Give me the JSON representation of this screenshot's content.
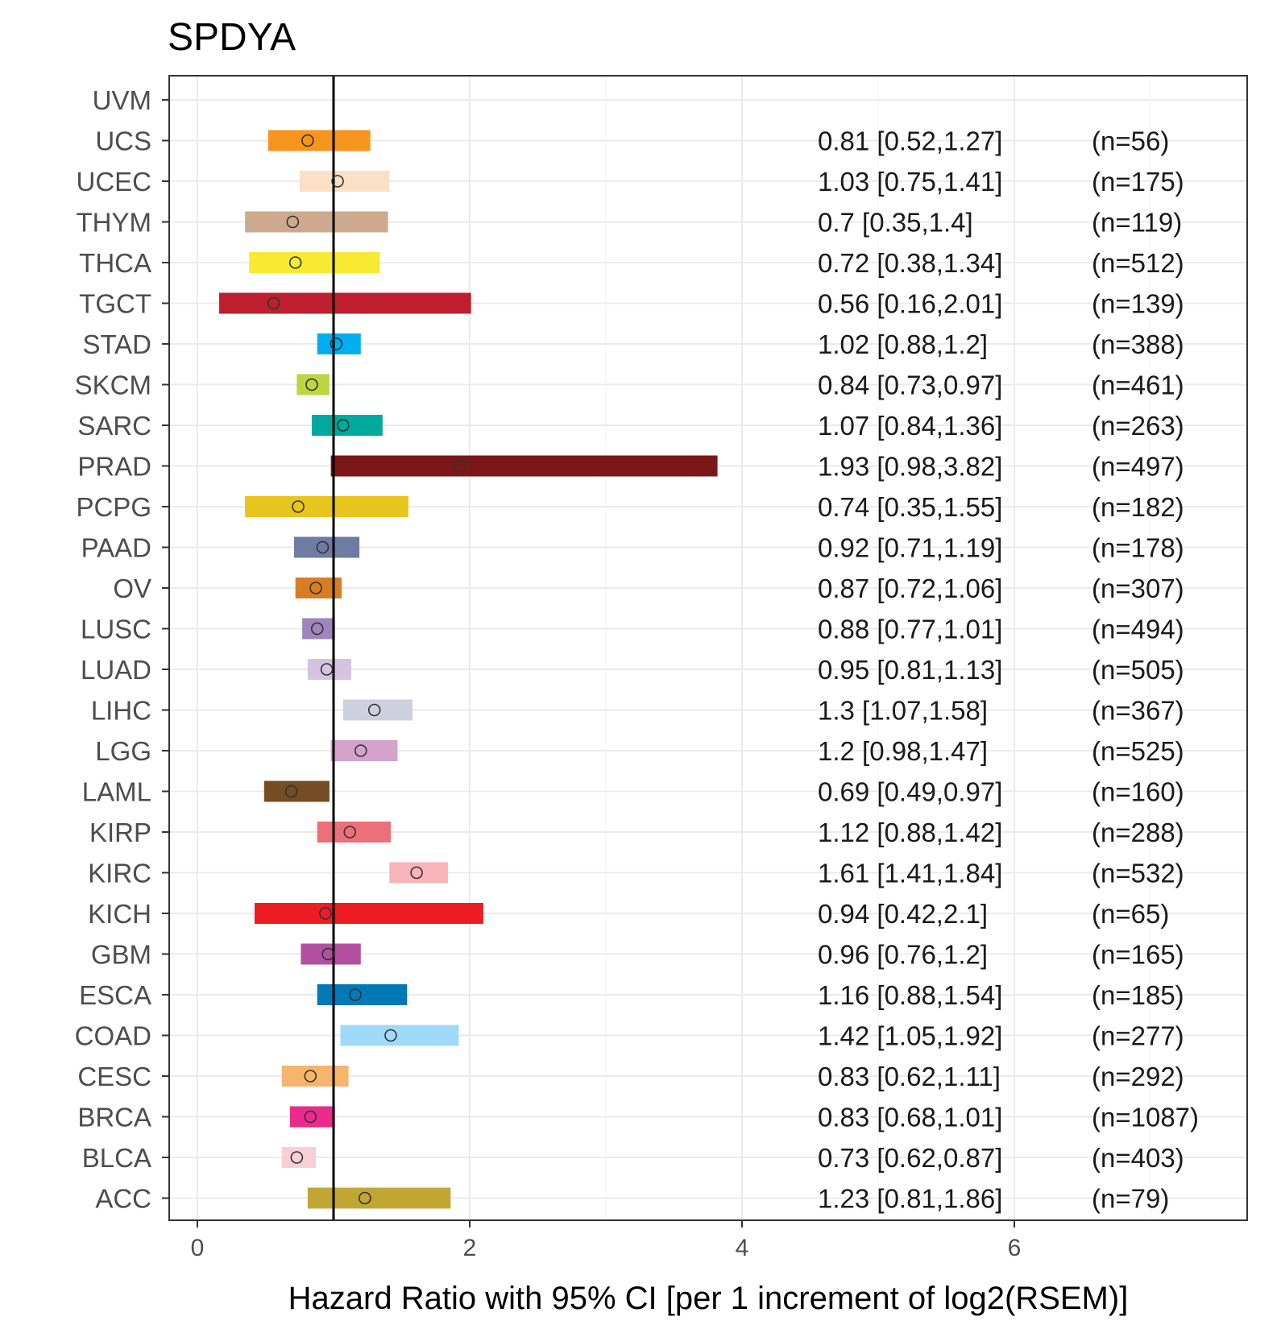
{
  "chart_data": {
    "type": "forest",
    "title": "SPDYA",
    "xlabel": "Hazard Ratio with 95% CI [per 1 increment of log2(RSEM)]",
    "ylabel": "",
    "xlim": [
      -0.2,
      7.6
    ],
    "x_ticks": [
      0,
      2,
      4,
      6
    ],
    "reference_line": 1,
    "grid": true,
    "rows": [
      {
        "label": "UVM",
        "hr": null,
        "lower": null,
        "upper": null,
        "ci_text": "",
        "n_text": "",
        "color": "#ffffff"
      },
      {
        "label": "UCS",
        "hr": 0.81,
        "lower": 0.52,
        "upper": 1.27,
        "ci_text": "0.81 [0.52,1.27]",
        "n_text": "(n=56)",
        "color": "#F7941D"
      },
      {
        "label": "UCEC",
        "hr": 1.03,
        "lower": 0.75,
        "upper": 1.41,
        "ci_text": "1.03 [0.75,1.41]",
        "n_text": "(n=175)",
        "color": "#FCE0C6"
      },
      {
        "label": "THYM",
        "hr": 0.7,
        "lower": 0.35,
        "upper": 1.4,
        "ci_text": "0.7 [0.35,1.4]",
        "n_text": "(n=119)",
        "color": "#CDAA8E"
      },
      {
        "label": "THCA",
        "hr": 0.72,
        "lower": 0.38,
        "upper": 1.34,
        "ci_text": "0.72 [0.38,1.34]",
        "n_text": "(n=512)",
        "color": "#F8EA33"
      },
      {
        "label": "TGCT",
        "hr": 0.56,
        "lower": 0.16,
        "upper": 2.01,
        "ci_text": "0.56 [0.16,2.01]",
        "n_text": "(n=139)",
        "color": "#BE1E2D"
      },
      {
        "label": "STAD",
        "hr": 1.02,
        "lower": 0.88,
        "upper": 1.2,
        "ci_text": "1.02 [0.88,1.2]",
        "n_text": "(n=388)",
        "color": "#00AEEF"
      },
      {
        "label": "SKCM",
        "hr": 0.84,
        "lower": 0.73,
        "upper": 0.97,
        "ci_text": "0.84 [0.73,0.97]",
        "n_text": "(n=461)",
        "color": "#BBD642"
      },
      {
        "label": "SARC",
        "hr": 1.07,
        "lower": 0.84,
        "upper": 1.36,
        "ci_text": "1.07 [0.84,1.36]",
        "n_text": "(n=263)",
        "color": "#00A99D"
      },
      {
        "label": "PRAD",
        "hr": 1.93,
        "lower": 0.98,
        "upper": 3.82,
        "ci_text": "1.93 [0.98,3.82]",
        "n_text": "(n=497)",
        "color": "#7A1818"
      },
      {
        "label": "PCPG",
        "hr": 0.74,
        "lower": 0.35,
        "upper": 1.55,
        "ci_text": "0.74 [0.35,1.55]",
        "n_text": "(n=182)",
        "color": "#E8C51D"
      },
      {
        "label": "PAAD",
        "hr": 0.92,
        "lower": 0.71,
        "upper": 1.19,
        "ci_text": "0.92 [0.71,1.19]",
        "n_text": "(n=178)",
        "color": "#6E7BA2"
      },
      {
        "label": "OV",
        "hr": 0.87,
        "lower": 0.72,
        "upper": 1.06,
        "ci_text": "0.87 [0.72,1.06]",
        "n_text": "(n=307)",
        "color": "#D97D24"
      },
      {
        "label": "LUSC",
        "hr": 0.88,
        "lower": 0.77,
        "upper": 1.01,
        "ci_text": "0.88 [0.77,1.01]",
        "n_text": "(n=494)",
        "color": "#A084BD"
      },
      {
        "label": "LUAD",
        "hr": 0.95,
        "lower": 0.81,
        "upper": 1.13,
        "ci_text": "0.95 [0.81,1.13]",
        "n_text": "(n=505)",
        "color": "#D6C3E1"
      },
      {
        "label": "LIHC",
        "hr": 1.3,
        "lower": 1.07,
        "upper": 1.58,
        "ci_text": "1.3 [1.07,1.58]",
        "n_text": "(n=367)",
        "color": "#CED0DD"
      },
      {
        "label": "LGG",
        "hr": 1.2,
        "lower": 0.98,
        "upper": 1.47,
        "ci_text": "1.2 [0.98,1.47]",
        "n_text": "(n=525)",
        "color": "#D5A2CB"
      },
      {
        "label": "LAML",
        "hr": 0.69,
        "lower": 0.49,
        "upper": 0.97,
        "ci_text": "0.69 [0.49,0.97]",
        "n_text": "(n=160)",
        "color": "#754C24"
      },
      {
        "label": "KIRP",
        "hr": 1.12,
        "lower": 0.88,
        "upper": 1.42,
        "ci_text": "1.12 [0.88,1.42]",
        "n_text": "(n=288)",
        "color": "#ED6F79"
      },
      {
        "label": "KIRC",
        "hr": 1.61,
        "lower": 1.41,
        "upper": 1.84,
        "ci_text": "1.61 [1.41,1.84]",
        "n_text": "(n=532)",
        "color": "#F8B4B8"
      },
      {
        "label": "KICH",
        "hr": 0.94,
        "lower": 0.42,
        "upper": 2.1,
        "ci_text": "0.94 [0.42,2.1]",
        "n_text": "(n=65)",
        "color": "#ED1C24"
      },
      {
        "label": "GBM",
        "hr": 0.96,
        "lower": 0.76,
        "upper": 1.2,
        "ci_text": "0.96 [0.76,1.2]",
        "n_text": "(n=165)",
        "color": "#B2509E"
      },
      {
        "label": "ESCA",
        "hr": 1.16,
        "lower": 0.88,
        "upper": 1.54,
        "ci_text": "1.16 [0.88,1.54]",
        "n_text": "(n=185)",
        "color": "#0079B6"
      },
      {
        "label": "COAD",
        "hr": 1.42,
        "lower": 1.05,
        "upper": 1.92,
        "ci_text": "1.42 [1.05,1.92]",
        "n_text": "(n=277)",
        "color": "#9FDBF9"
      },
      {
        "label": "CESC",
        "hr": 0.83,
        "lower": 0.62,
        "upper": 1.11,
        "ci_text": "0.83 [0.62,1.11]",
        "n_text": "(n=292)",
        "color": "#F6B56A"
      },
      {
        "label": "BRCA",
        "hr": 0.83,
        "lower": 0.68,
        "upper": 1.01,
        "ci_text": "0.83 [0.68,1.01]",
        "n_text": "(n=1087)",
        "color": "#EC2A8C"
      },
      {
        "label": "BLCA",
        "hr": 0.73,
        "lower": 0.62,
        "upper": 0.87,
        "ci_text": "0.73 [0.62,0.87]",
        "n_text": "(n=403)",
        "color": "#F9CED6"
      },
      {
        "label": "ACC",
        "hr": 1.23,
        "lower": 0.81,
        "upper": 1.86,
        "ci_text": "1.23 [0.81,1.86]",
        "n_text": "(n=79)",
        "color": "#C1A634"
      }
    ]
  }
}
